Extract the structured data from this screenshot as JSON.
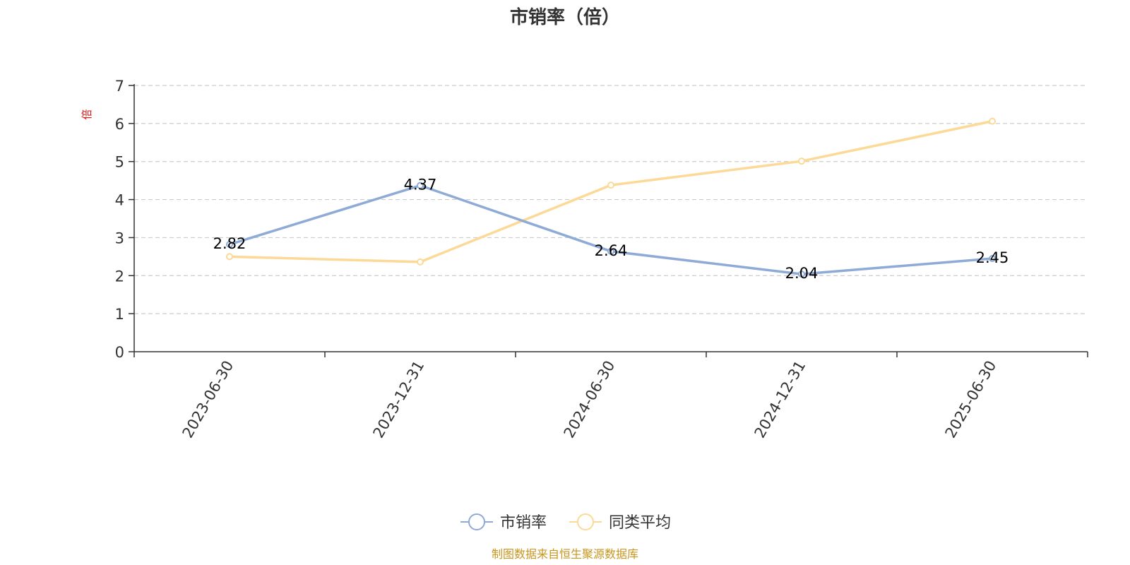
{
  "chart_data": {
    "type": "line",
    "title": "市销率（倍）",
    "ylabel": "倍",
    "categories": [
      "2023-06-30",
      "2023-12-31",
      "2024-06-30",
      "2024-12-31",
      "2025-06-30"
    ],
    "ylim": [
      0,
      7
    ],
    "yticks": [
      0,
      1,
      2,
      3,
      4,
      5,
      6,
      7
    ],
    "grid": true,
    "legend_position": "bottom",
    "series": [
      {
        "name": "市销率",
        "values": [
          2.82,
          4.37,
          2.64,
          2.04,
          2.45
        ],
        "color": "#8eaad6",
        "show_labels": true
      },
      {
        "name": "同类平均",
        "values": [
          2.5,
          2.36,
          4.38,
          5.01,
          6.06
        ],
        "color": "#fcd996",
        "show_labels": false
      }
    ]
  },
  "source": "制图数据来自恒生聚源数据库"
}
